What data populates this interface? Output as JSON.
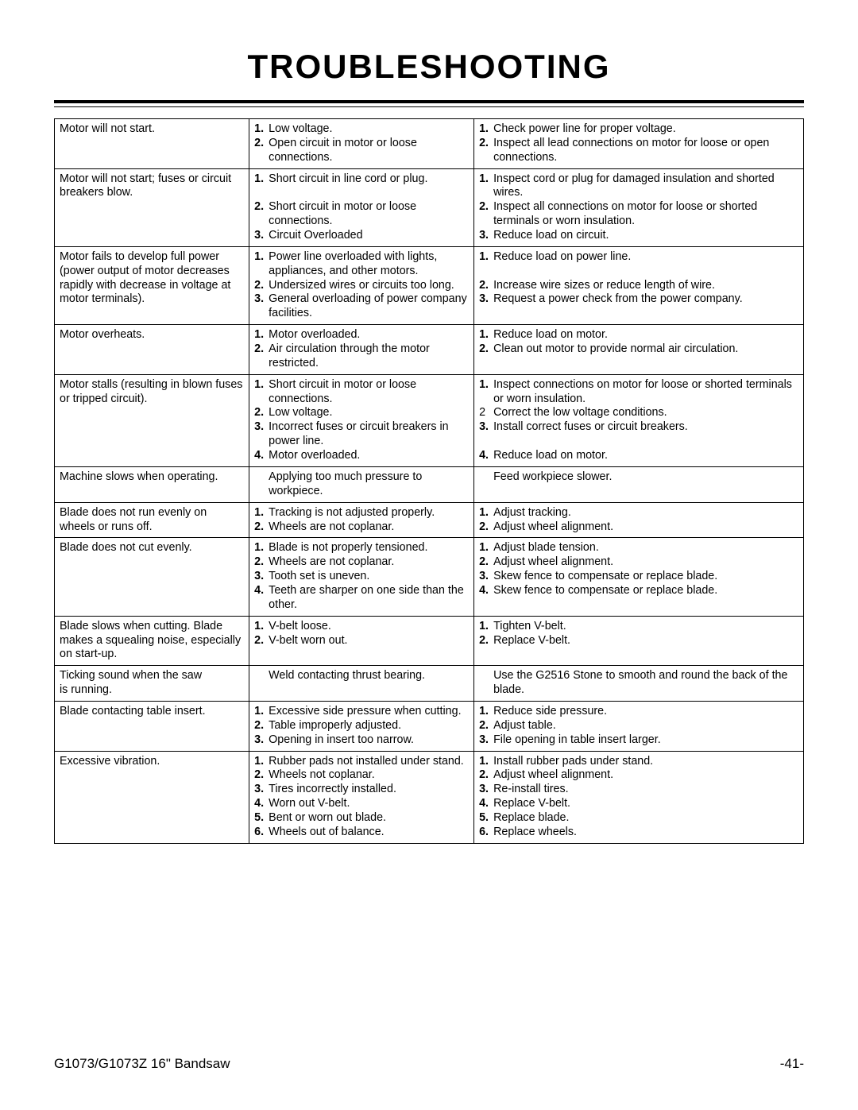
{
  "title": "TROUBLESHOOTING",
  "footer_left": "G1073/G1073Z 16\" Bandsaw",
  "footer_right": "-41-",
  "rows": [
    {
      "problem": "Motor will not start.",
      "causes": [
        "Low voltage.",
        "Open circuit in motor or loose connections."
      ],
      "remedies": [
        "Check power line for proper voltage.",
        "Inspect all lead connections on motor for loose or open connections."
      ]
    },
    {
      "problem": "Motor will not start; fuses or circuit breakers blow.",
      "causes": [
        "Short circuit in line cord or plug.",
        "Short circuit in motor or loose connections.",
        "Circuit Overloaded"
      ],
      "cause_spacers": [
        0
      ],
      "remedies": [
        "Inspect cord or plug for damaged insulation and shorted wires.",
        "Inspect all connections on motor for loose or shorted terminals or worn insulation.",
        "Reduce load on circuit."
      ]
    },
    {
      "problem": "Motor fails to develop full power (power output of motor decreases rapidly with decrease in voltage at motor terminals).",
      "causes": [
        "Power line overloaded with lights, appliances, and other motors.",
        "Undersized wires or circuits too long.",
        "General overloading of power company facilities."
      ],
      "remedies": [
        "Reduce load on power line.",
        "Increase wire sizes or reduce length of wire.",
        "Request a power check from the power company."
      ],
      "remedy_spacers": [
        0
      ]
    },
    {
      "problem": "Motor overheats.",
      "causes": [
        "Motor overloaded.",
        "Air circulation through the motor restricted."
      ],
      "remedies": [
        "Reduce load on motor.",
        "Clean out motor to provide normal air circulation."
      ]
    },
    {
      "problem": "Motor stalls (resulting in blown fuses or tripped circuit).",
      "causes": [
        "Short circuit in motor or loose connections.",
        "Low voltage.",
        "Incorrect fuses or circuit breakers in power line.",
        "Motor overloaded."
      ],
      "remedies": [
        "Inspect connections on motor for loose or shorted terminals or worn insulation.",
        "Correct the low voltage conditions.",
        "Install correct fuses or circuit breakers.",
        "Reduce load on motor."
      ],
      "remedy_num_plain": [
        1
      ],
      "remedy_spacers": [
        2
      ]
    },
    {
      "problem": "Machine slows when operating.",
      "causes_plain": "Applying too much pressure to workpiece.",
      "remedies_plain": "Feed workpiece slower."
    },
    {
      "problem": "Blade does not run evenly on wheels or runs off.",
      "causes": [
        "Tracking is not adjusted properly.",
        "Wheels are not coplanar."
      ],
      "remedies": [
        "Adjust tracking.",
        "Adjust wheel alignment."
      ]
    },
    {
      "problem": "Blade does not cut evenly.",
      "causes": [
        "Blade is not properly tensioned.",
        "Wheels are not coplanar.",
        "Tooth set is uneven.",
        "Teeth are sharper on one side than the other."
      ],
      "remedies": [
        "Adjust blade tension.",
        "Adjust wheel alignment.",
        "Skew fence to compensate or replace blade.",
        "Skew fence to compensate or replace blade."
      ]
    },
    {
      "problem": "Blade slows when cutting. Blade makes a squealing noise, especially on start-up.",
      "causes": [
        "V-belt loose.",
        "V-belt worn out."
      ],
      "remedies": [
        "Tighten V-belt.",
        "Replace V-belt."
      ]
    },
    {
      "problem": "Ticking sound when the saw is running.",
      "causes_plain": "Weld contacting thrust bearing.",
      "remedies_plain": "Use the G2516 Stone to smooth and round the back of the blade."
    },
    {
      "problem": "Blade contacting table insert.",
      "causes": [
        "Excessive side pressure when cutting.",
        "Table improperly adjusted.",
        "Opening in insert too narrow."
      ],
      "remedies": [
        "Reduce side pressure.",
        "Adjust table.",
        "File opening in table insert larger."
      ]
    },
    {
      "problem": "Excessive vibration.",
      "causes": [
        "Rubber pads not installed under stand.",
        "Wheels not coplanar.",
        "Tires incorrectly installed.",
        "Worn out V-belt.",
        "Bent or worn out blade.",
        "Wheels out of balance."
      ],
      "remedies": [
        "Install rubber pads under stand.",
        "Adjust wheel alignment.",
        "Re-install tires.",
        "Replace V-belt.",
        "Replace blade.",
        "Replace wheels."
      ]
    }
  ]
}
